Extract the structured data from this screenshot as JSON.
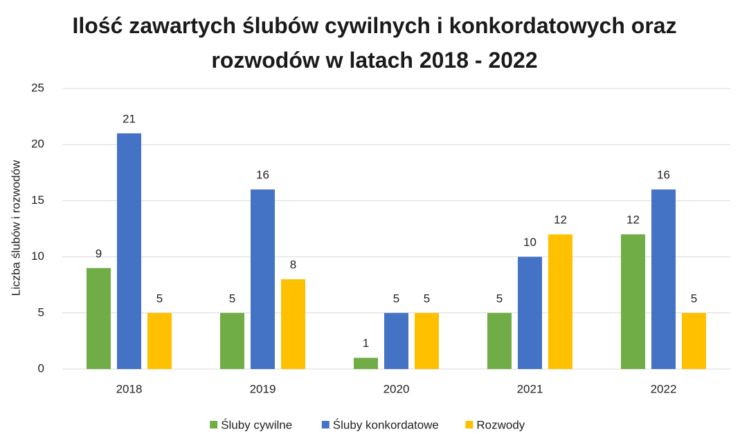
{
  "chart_data": {
    "type": "bar",
    "title": "Ilość zawartych ślubów cywilnych i konkordatowych oraz rozwodów w latach 2018 - 2022",
    "y_label": "Liczba ślubów i rozwodów",
    "categories": [
      "2018",
      "2019",
      "2020",
      "2021",
      "2022"
    ],
    "series": [
      {
        "name": "Śluby cywilne",
        "color": "#70ad47",
        "values": [
          9,
          5,
          1,
          5,
          12
        ]
      },
      {
        "name": "Śluby konkordatowe",
        "color": "#4472c4",
        "values": [
          21,
          16,
          5,
          10,
          16
        ]
      },
      {
        "name": "Rozwody",
        "color": "#ffc000",
        "values": [
          5,
          8,
          5,
          12,
          5
        ]
      }
    ],
    "ylim": [
      0,
      25
    ],
    "yticks": [
      0,
      5,
      10,
      15,
      20,
      25
    ],
    "grid": true,
    "legend": "bottom",
    "data_labels": true
  }
}
